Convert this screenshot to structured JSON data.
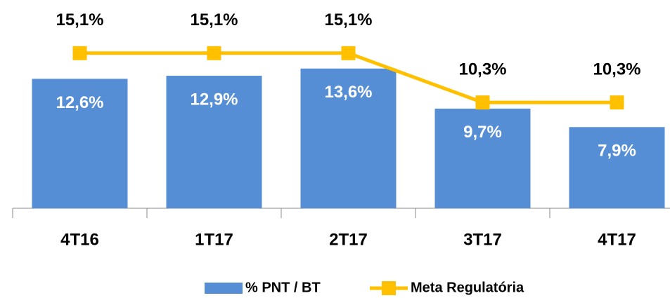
{
  "chart_data": {
    "type": "bar_line",
    "categories": [
      "4T16",
      "1T17",
      "2T17",
      "3T17",
      "4T17"
    ],
    "series": [
      {
        "name": "% PNT / BT",
        "type": "bar",
        "color": "#558ed5",
        "values": [
          12.6,
          12.9,
          13.6,
          9.7,
          7.9
        ],
        "value_labels": [
          "12,6%",
          "12,9%",
          "13,6%",
          "9,7%",
          "7,9%"
        ]
      },
      {
        "name": "Meta Regulatória",
        "type": "line",
        "color": "#ffc000",
        "values": [
          15.1,
          15.1,
          15.1,
          10.3,
          10.3
        ],
        "value_labels": [
          "15,1%",
          "15,1%",
          "15,1%",
          "10,3%",
          "10,3%"
        ]
      }
    ],
    "ylim": [
      0,
      20
    ],
    "legend": "bottom"
  }
}
